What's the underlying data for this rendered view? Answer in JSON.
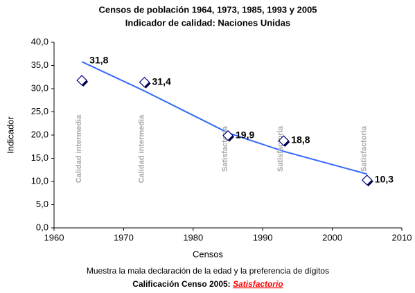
{
  "chart_data": {
    "type": "scatter",
    "title": "Censos de población 1964, 1973, 1985, 1993 y 2005",
    "subtitle": "Indicador de calidad: Naciones Unidas",
    "x_label": "Censos",
    "y_label": "Indicador",
    "x": [
      1964,
      1973,
      1985,
      1993,
      2005
    ],
    "values": [
      31.8,
      31.4,
      19.9,
      18.8,
      10.3
    ],
    "value_labels": [
      "31,8",
      "31,4",
      "19,9",
      "18,8",
      "10,3"
    ],
    "point_notes": [
      "Calidad intermedia",
      "Calidad intermedia",
      "Satisfactoria",
      "Satisfactoria",
      "Satisfactoria"
    ],
    "trend": {
      "x": [
        1964,
        1973,
        1985,
        1993,
        2005
      ],
      "values": [
        35.8,
        29.5,
        20.5,
        16.5,
        11.6
      ],
      "color": "#3366ff"
    },
    "xlim": [
      1960,
      2010
    ],
    "xticks": [
      1960,
      1970,
      1980,
      1990,
      2000,
      2010
    ],
    "ylim": [
      0,
      40
    ],
    "yticks": [
      {
        "value": 0,
        "label": "0,0"
      },
      {
        "value": 5,
        "label": "5,0"
      },
      {
        "value": 10,
        "label": "10,0"
      },
      {
        "value": 15,
        "label": "15,0"
      },
      {
        "value": 20,
        "label": "20,0"
      },
      {
        "value": 25,
        "label": "25,0"
      },
      {
        "value": 30,
        "label": "30,0"
      },
      {
        "value": 35,
        "label": "35,0"
      },
      {
        "value": 40,
        "label": "40,0"
      }
    ],
    "note": "Muestra la mala declaración de la edad y la preferencia de dígitos",
    "rating_label": "Calificación Censo 2005:",
    "rating": "Satisfactorio",
    "rating_color": "#ff0000"
  }
}
